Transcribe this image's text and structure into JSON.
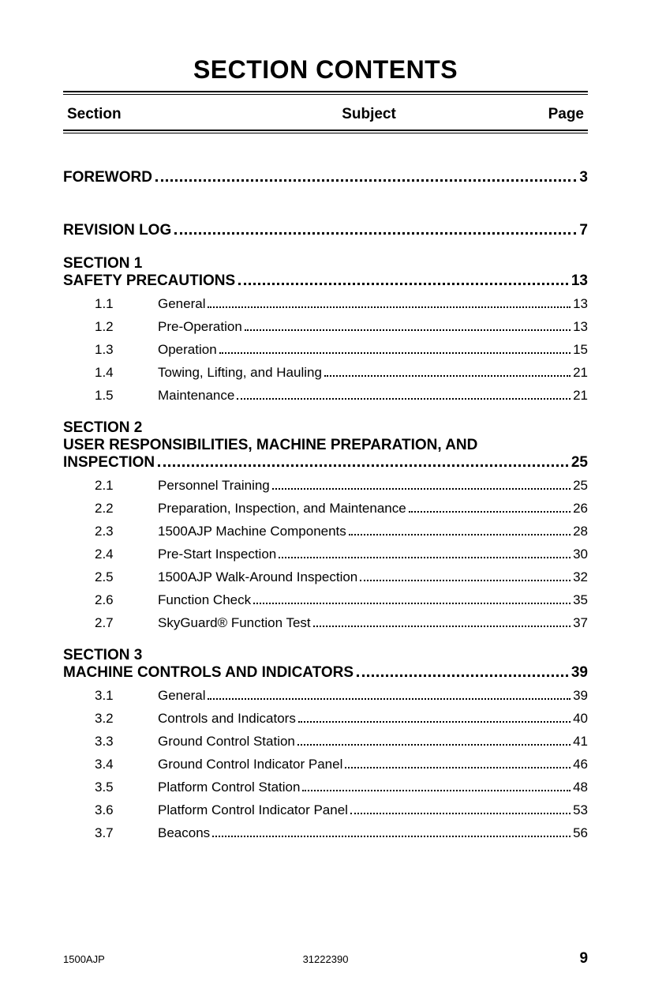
{
  "title": "SECTION CONTENTS",
  "header": {
    "section": "Section",
    "subject": "Subject",
    "page": "Page"
  },
  "toc": [
    {
      "type": "major",
      "title": "FOREWORD",
      "page": "3",
      "gap": "first"
    },
    {
      "type": "major",
      "title": "REVISION LOG",
      "page": "7",
      "gap": "large"
    },
    {
      "type": "section",
      "label": "SECTION 1",
      "title": "SAFETY PRECAUTIONS",
      "page": "13",
      "gap": "med",
      "subs": [
        {
          "num": "1.1",
          "title": "General",
          "page": "13"
        },
        {
          "num": "1.2",
          "title": "Pre-Operation",
          "page": "13"
        },
        {
          "num": "1.3",
          "title": "Operation",
          "page": "15"
        },
        {
          "num": "1.4",
          "title": "Towing, Lifting, and Hauling",
          "page": "21"
        },
        {
          "num": "1.5",
          "title": "Maintenance",
          "page": "21"
        }
      ]
    },
    {
      "type": "section",
      "label": "SECTION 2",
      "title": "USER RESPONSIBILITIES, MACHINE PREPARATION, AND INSPECTION",
      "page": "25",
      "gap": "med",
      "subs": [
        {
          "num": "2.1",
          "title": "Personnel Training",
          "page": "25"
        },
        {
          "num": "2.2",
          "title": "Preparation, Inspection, and Maintenance",
          "page": "26"
        },
        {
          "num": "2.3",
          "title": "1500AJP Machine Components",
          "page": "28"
        },
        {
          "num": "2.4",
          "title": "Pre-Start Inspection",
          "page": "30"
        },
        {
          "num": "2.5",
          "title": "1500AJP Walk-Around Inspection",
          "page": "32"
        },
        {
          "num": "2.6",
          "title": "Function Check",
          "page": "35"
        },
        {
          "num": "2.7",
          "title": "SkyGuard® Function Test",
          "page": "37"
        }
      ]
    },
    {
      "type": "section",
      "label": "SECTION 3",
      "title": "MACHINE CONTROLS AND INDICATORS",
      "page": "39",
      "gap": "med",
      "subs": [
        {
          "num": "3.1",
          "title": "General",
          "page": "39"
        },
        {
          "num": "3.2",
          "title": "Controls and Indicators",
          "page": "40"
        },
        {
          "num": "3.3",
          "title": "Ground Control Station",
          "page": "41"
        },
        {
          "num": "3.4",
          "title": "Ground Control Indicator Panel",
          "page": "46"
        },
        {
          "num": "3.5",
          "title": "Platform Control Station",
          "page": "48"
        },
        {
          "num": "3.6",
          "title": "Platform Control Indicator Panel",
          "page": "53"
        },
        {
          "num": "3.7",
          "title": "Beacons",
          "page": "56"
        }
      ]
    }
  ],
  "footer": {
    "model": "1500AJP",
    "docnum": "31222390",
    "pagenum": "9"
  }
}
